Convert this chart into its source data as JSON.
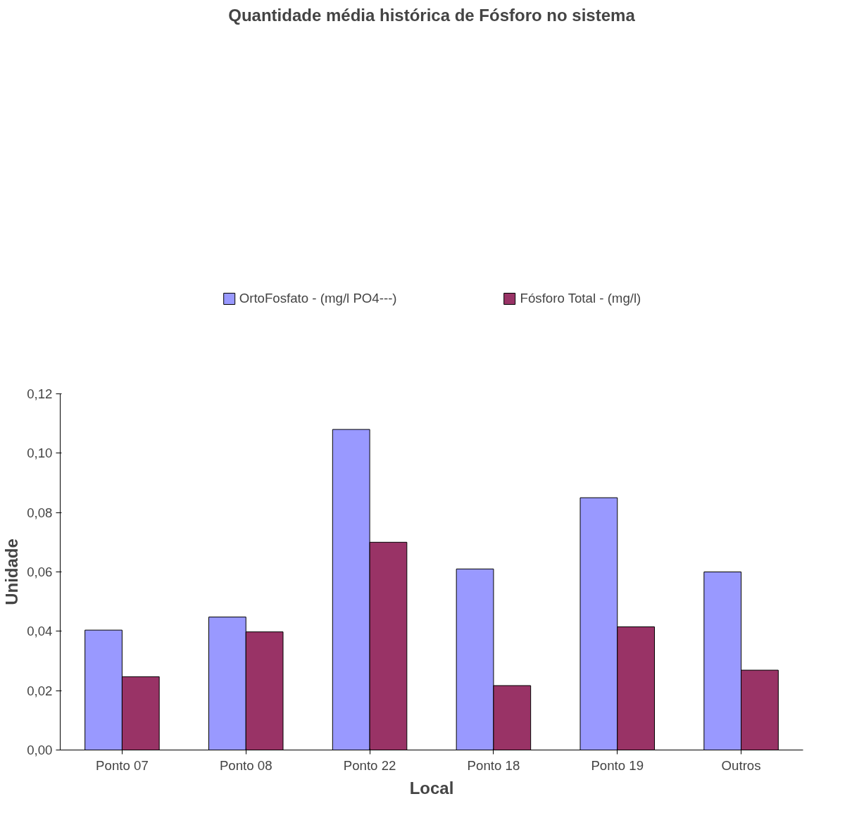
{
  "chart_data": {
    "type": "bar",
    "title": "Quantidade média histórica de Fósforo no sistema",
    "xlabel": "Local",
    "ylabel": "Unidade",
    "categories": [
      "Ponto 07",
      "Ponto 08",
      "Ponto 22",
      "Ponto 18",
      "Ponto 19",
      "Outros"
    ],
    "series": [
      {
        "name": "OrtoFosfato - (mg/l PO4---)",
        "color": "#9999ff",
        "values": [
          0.0404,
          0.0448,
          0.108,
          0.061,
          0.085,
          0.06
        ]
      },
      {
        "name": "Fósforo Total - (mg/l)",
        "color": "#993366",
        "values": [
          0.0247,
          0.0398,
          0.07,
          0.0217,
          0.0415,
          0.0269
        ]
      }
    ],
    "ylim": [
      0,
      0.12
    ],
    "yticks": [
      {
        "value": 0,
        "label": "0,00"
      },
      {
        "value": 0.02,
        "label": "0,02"
      },
      {
        "value": 0.04,
        "label": "0,04"
      },
      {
        "value": 0.06,
        "label": "0,06"
      },
      {
        "value": 0.08,
        "label": "0,08"
      },
      {
        "value": 0.1,
        "label": "0,10"
      },
      {
        "value": 0.12,
        "label": "0,12"
      }
    ],
    "grid": false,
    "legend": "top"
  }
}
